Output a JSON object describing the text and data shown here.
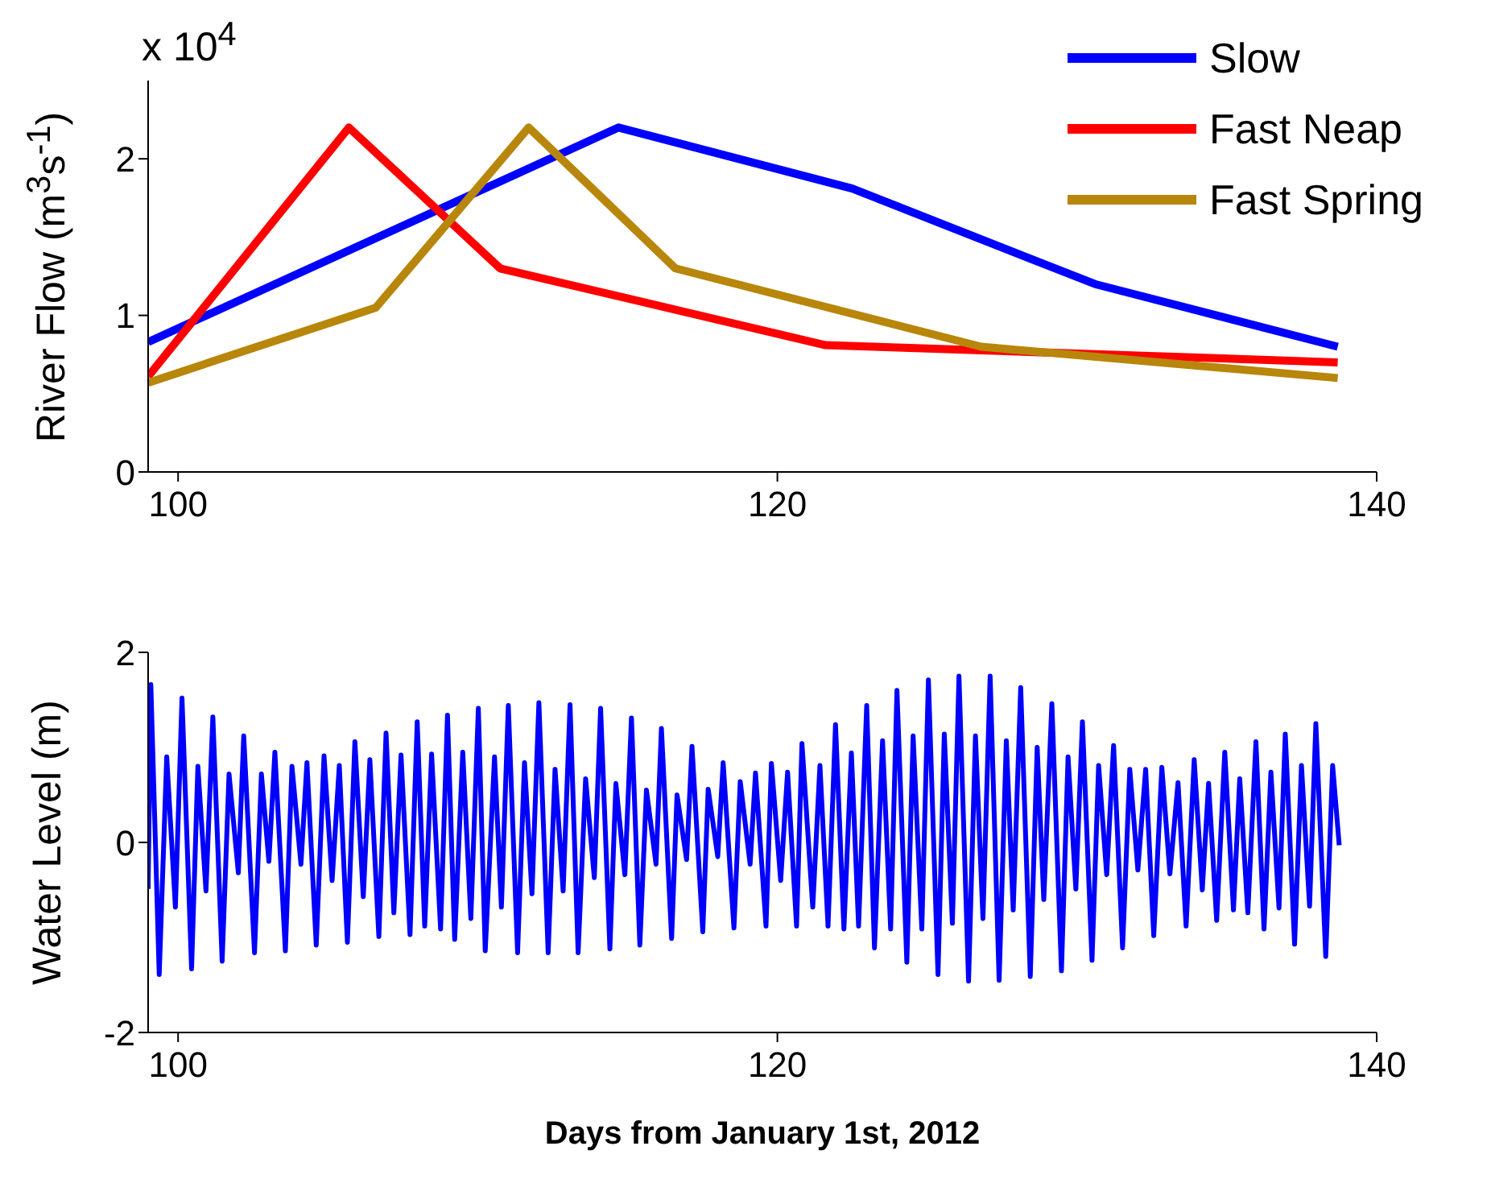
{
  "chart_data": [
    {
      "type": "line",
      "ylabel": "River Flow (m$^{3}$s$^{-1}$)",
      "annotations": [
        "x 10$^{4}$"
      ],
      "xlim": [
        99,
        140
      ],
      "xticks": [
        100,
        120,
        140
      ],
      "ylim": [
        0,
        2.5
      ],
      "yticks": [
        0,
        1,
        2
      ],
      "legend": "top right",
      "marker": "none",
      "line_style": "solid",
      "series": [
        {
          "name": "Slow",
          "color": "#0000ff",
          "x": [
            99,
            114.7,
            122.5,
            130.6,
            138.7
          ],
          "values": [
            0.83,
            2.2,
            1.81,
            1.2,
            0.8
          ]
        },
        {
          "name": "Fast Neap",
          "color": "#ff0000",
          "x": [
            99,
            105.7,
            110.75,
            121.6,
            138.7
          ],
          "values": [
            0.61,
            2.2,
            1.3,
            0.81,
            0.7
          ]
        },
        {
          "name": "Fast Spring",
          "color": "#b8860b",
          "x": [
            99,
            106.6,
            111.7,
            116.6,
            126.8,
            138.7
          ],
          "values": [
            0.57,
            1.05,
            2.2,
            1.3,
            0.8,
            0.6
          ]
        }
      ]
    },
    {
      "type": "line",
      "ylabel": "Water Level (m)",
      "xlabel": "Days from January 1st, 2012",
      "xlim": [
        99,
        140
      ],
      "xticks": [
        100,
        120,
        140
      ],
      "ylim": [
        -2,
        2
      ],
      "yticks": [
        -2,
        0,
        2
      ],
      "legend": false,
      "marker": "none",
      "line_style": "solid",
      "series": [
        {
          "color": "#0000ff",
          "x": [
            99.0,
            99.09,
            99.37,
            99.62,
            99.91,
            100.13,
            100.45,
            100.66,
            100.93,
            101.16,
            101.47,
            101.7,
            102.01,
            102.19,
            102.55,
            102.78,
            103.03,
            103.23,
            103.58,
            103.8,
            104.1,
            104.3,
            104.61,
            104.87,
            105.14,
            105.38,
            105.65,
            105.9,
            106.18,
            106.4,
            106.7,
            106.94,
            107.2,
            107.44,
            107.74,
            107.98,
            108.23,
            108.46,
            108.76,
            108.99,
            109.23,
            109.5,
            109.77,
            110.02,
            110.25,
            110.56,
            110.79,
            111.02,
            111.33,
            111.56,
            111.81,
            112.04,
            112.35,
            112.58,
            112.85,
            113.08,
            113.35,
            113.6,
            113.89,
            114.1,
            114.41,
            114.61,
            114.91,
            115.13,
            115.41,
            115.63,
            115.95,
            116.13,
            116.47,
            116.65,
            116.97,
            117.15,
            117.51,
            117.69,
            118.01,
            118.19,
            118.55,
            118.76,
            119.09,
            119.27,
            119.62,
            119.8,
            120.11,
            120.34,
            120.64,
            120.82,
            121.18,
            121.42,
            121.69,
            121.94,
            122.22,
            122.47,
            122.71,
            122.98,
            123.24,
            123.51,
            123.78,
            123.99,
            124.32,
            124.53,
            124.82,
            125.04,
            125.36,
            125.57,
            125.84,
            126.06,
            126.38,
            126.61,
            126.86,
            127.1,
            127.4,
            127.64,
            127.87,
            128.12,
            128.44,
            128.67,
            128.89,
            129.16,
            129.48,
            129.7,
            129.96,
            130.18,
            130.5,
            130.72,
            130.99,
            131.22,
            131.52,
            131.76,
            132.03,
            132.29,
            132.56,
            132.83,
            133.1,
            133.37,
            133.64,
            133.91,
            134.18,
            134.39,
            134.66,
            134.93,
            135.22,
            135.43,
            135.7,
            135.97,
            136.24,
            136.47,
            136.74,
            136.95,
            137.26,
            137.49,
            137.76,
            137.97,
            138.3,
            138.53,
            138.75
          ],
          "values": [
            -0.49,
            1.66,
            -1.39,
            0.9,
            -0.68,
            1.52,
            -1.33,
            0.8,
            -0.51,
            1.32,
            -1.25,
            0.72,
            -0.32,
            1.12,
            -1.16,
            0.72,
            -0.2,
            0.95,
            -1.14,
            0.8,
            -0.23,
            0.84,
            -1.08,
            0.91,
            -0.4,
            0.81,
            -1.05,
            1.06,
            -0.57,
            0.87,
            -0.99,
            1.15,
            -0.74,
            0.92,
            -0.97,
            1.27,
            -0.88,
            0.93,
            -0.91,
            1.34,
            -1.02,
            0.95,
            -0.8,
            1.41,
            -1.14,
            0.9,
            -0.68,
            1.44,
            -1.16,
            0.84,
            -0.54,
            1.47,
            -1.16,
            0.77,
            -0.51,
            1.45,
            -1.16,
            0.67,
            -0.37,
            1.41,
            -1.12,
            0.62,
            -0.34,
            1.31,
            -1.08,
            0.55,
            -0.23,
            1.2,
            -1.01,
            0.5,
            -0.18,
            1.01,
            -0.94,
            0.56,
            -0.15,
            0.84,
            -0.9,
            0.64,
            -0.23,
            0.73,
            -0.88,
            0.83,
            -0.4,
            0.74,
            -0.88,
            1.04,
            -0.68,
            0.81,
            -0.88,
            1.24,
            -0.91,
            0.94,
            -0.88,
            1.44,
            -1.11,
            1.07,
            -0.91,
            1.6,
            -1.26,
            1.12,
            -0.91,
            1.71,
            -1.39,
            1.14,
            -0.85,
            1.75,
            -1.46,
            1.12,
            -0.8,
            1.75,
            -1.45,
            1.07,
            -0.71,
            1.63,
            -1.41,
            1.0,
            -0.6,
            1.46,
            -1.35,
            0.9,
            -0.49,
            1.27,
            -1.24,
            0.81,
            -0.34,
            1.02,
            -1.11,
            0.77,
            -0.29,
            0.77,
            -0.98,
            0.79,
            -0.33,
            0.63,
            -0.88,
            0.87,
            -0.5,
            0.62,
            -0.82,
            0.95,
            -0.71,
            0.67,
            -0.74,
            1.06,
            -0.91,
            0.74,
            -0.69,
            1.14,
            -1.07,
            0.81,
            -0.67,
            1.25,
            -1.2,
            0.81,
            -0.03
          ]
        }
      ]
    }
  ]
}
